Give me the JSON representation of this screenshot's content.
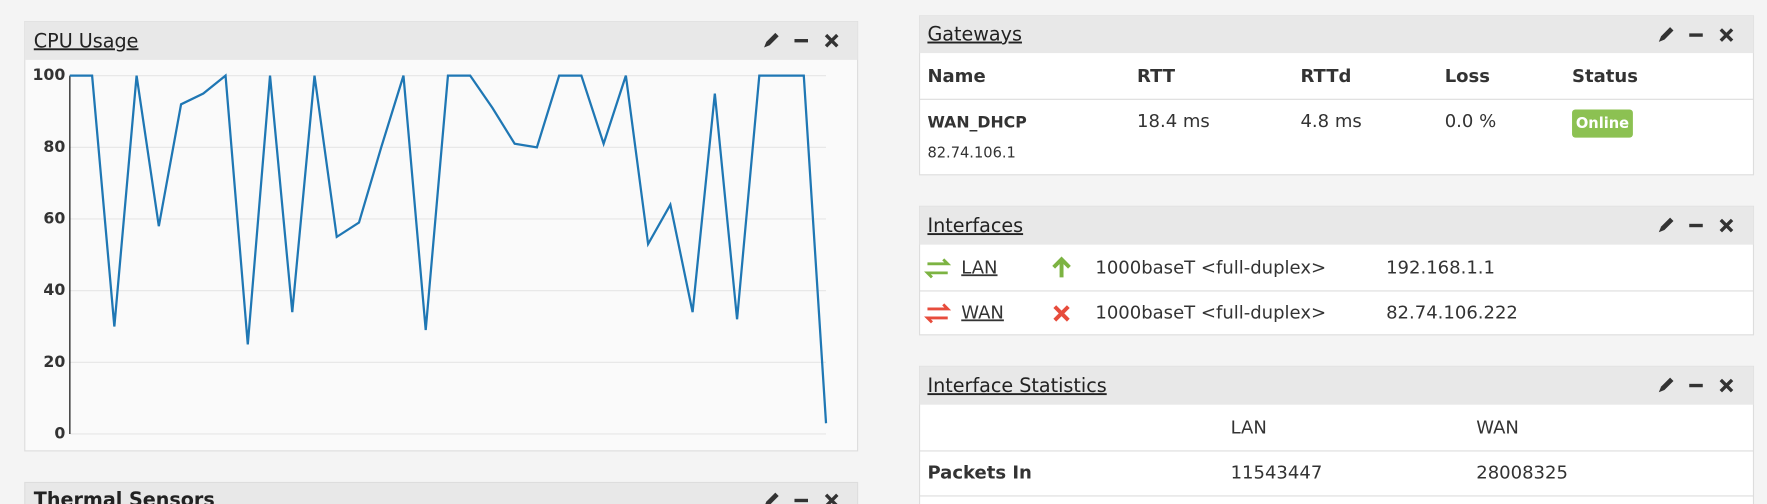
{
  "chart_data": {
    "type": "line",
    "title": "CPU Usage",
    "values": [
      100,
      100,
      30,
      100,
      58,
      92,
      95,
      100,
      25,
      100,
      34,
      100,
      55,
      59,
      80,
      100,
      29,
      100,
      100,
      91,
      81,
      80,
      100,
      100,
      81,
      100,
      53,
      64,
      34,
      95,
      32,
      100,
      100,
      100,
      3
    ],
    "color": "#1f77b4",
    "ylim": [
      0,
      100
    ],
    "yticks": [
      0,
      20,
      40,
      60,
      80,
      100
    ],
    "grid": true
  },
  "thermal_sensors": {
    "title": "Thermal Sensors"
  },
  "gateways": {
    "title": "Gateways",
    "columns": [
      "Name",
      "RTT",
      "RTTd",
      "Loss",
      "Status"
    ],
    "rows": [
      {
        "name": "WAN_DHCP",
        "address": "82.74.106.1",
        "rtt": "18.4 ms",
        "rttd": "4.8 ms",
        "loss": "0.0 %",
        "status": "Online"
      }
    ]
  },
  "interfaces": {
    "title": "Interfaces",
    "rows": [
      {
        "name": "LAN",
        "media": "1000baseT <full-duplex>",
        "ip": "192.168.1.1"
      },
      {
        "name": "WAN",
        "media": "1000baseT <full-duplex>",
        "ip": "82.74.106.222"
      }
    ]
  },
  "interface_statistics": {
    "title": "Interface Statistics",
    "columns": [
      "LAN",
      "WAN"
    ],
    "rows": [
      {
        "label": "Packets In",
        "values": [
          11543447,
          28008325
        ]
      }
    ]
  }
}
